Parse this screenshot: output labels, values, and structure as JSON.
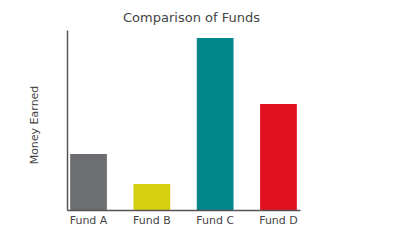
{
  "chart_data": {
    "type": "bar",
    "title": "Comparison of Funds",
    "y_label": "Money Earned",
    "categories": [
      "Fund A",
      "Fund B",
      "Fund C",
      "Fund D"
    ],
    "values": [
      56,
      26,
      172,
      106
    ],
    "colors": [
      "#6d6e71",
      "#d4d00f",
      "#00868b",
      "#e0101e"
    ],
    "ylim": [
      0,
      180
    ],
    "tick_labels": "x",
    "grid": false
  }
}
